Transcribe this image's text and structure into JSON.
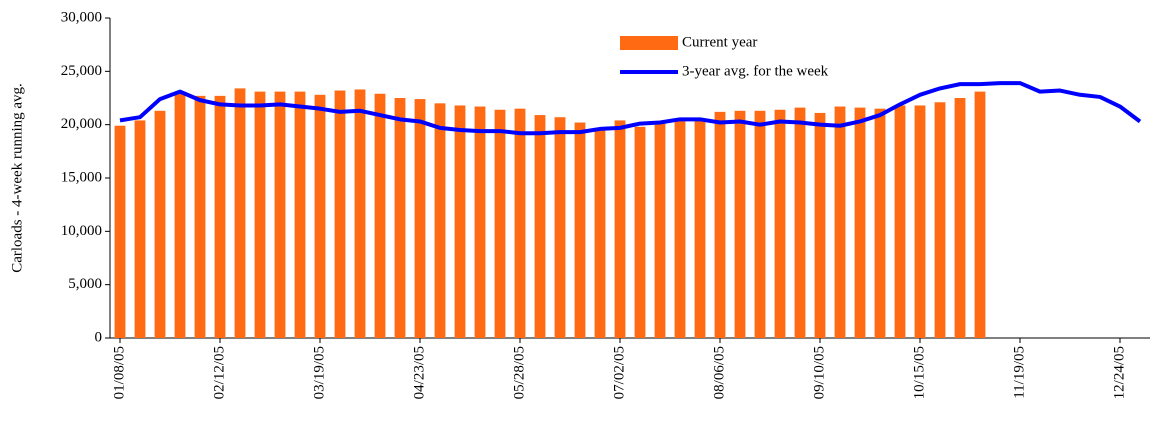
{
  "chart_data": {
    "type": "bar-line",
    "ylabel": "Carloads - 4-week running avg.",
    "categories": [
      "01/08/05",
      null,
      null,
      null,
      null,
      "02/12/05",
      null,
      null,
      null,
      null,
      "03/19/05",
      null,
      null,
      null,
      null,
      "04/23/05",
      null,
      null,
      null,
      null,
      "05/28/05",
      null,
      null,
      null,
      null,
      "07/02/05",
      null,
      null,
      null,
      null,
      "08/06/05",
      null,
      null,
      null,
      null,
      "09/10/05",
      null,
      null,
      null,
      null,
      "10/15/05",
      null,
      null,
      null,
      null,
      "11/19/05",
      null,
      null,
      null,
      null,
      "12/24/05",
      null
    ],
    "series": [
      {
        "name": "Current year",
        "type": "bar",
        "color": "#ff6a13",
        "values": [
          19900,
          20400,
          21300,
          22900,
          22700,
          22700,
          23400,
          23100,
          23100,
          23100,
          22800,
          23200,
          23300,
          22900,
          22500,
          22400,
          22000,
          21800,
          21700,
          21400,
          21500,
          20900,
          20700,
          20200,
          19600,
          20400,
          19800,
          20100,
          20400,
          20600,
          21200,
          21300,
          21300,
          21400,
          21600,
          21100,
          21700,
          21600,
          21500,
          21800,
          21800,
          22100,
          22500,
          23100,
          null,
          null,
          null,
          null,
          null,
          null,
          null,
          null
        ]
      },
      {
        "name": "3-year avg. for the week",
        "type": "line",
        "color": "#0000ff",
        "values": [
          20400,
          20700,
          22400,
          23100,
          22300,
          21900,
          21800,
          21800,
          21900,
          21700,
          21500,
          21200,
          21300,
          20900,
          20500,
          20300,
          19700,
          19500,
          19400,
          19400,
          19200,
          19200,
          19300,
          19300,
          19600,
          19700,
          20100,
          20200,
          20500,
          20500,
          20200,
          20300,
          20000,
          20300,
          20200,
          20000,
          19900,
          20300,
          20900,
          21900,
          22800,
          23400,
          23800,
          23800,
          23900,
          23900,
          23100,
          23200,
          22800,
          22600,
          21700,
          20300
        ]
      }
    ],
    "ylim": [
      0,
      30000
    ],
    "yticks": [
      0,
      {
        "value": 5000,
        "label": "5,000"
      },
      {
        "value": 10000,
        "label": "10,000"
      },
      {
        "value": 15000,
        "label": "15,000"
      },
      {
        "value": 20000,
        "label": "20,000"
      },
      {
        "value": 25000,
        "label": "25,000"
      },
      {
        "value": 30000,
        "label": "30,000"
      }
    ],
    "grid": false
  }
}
